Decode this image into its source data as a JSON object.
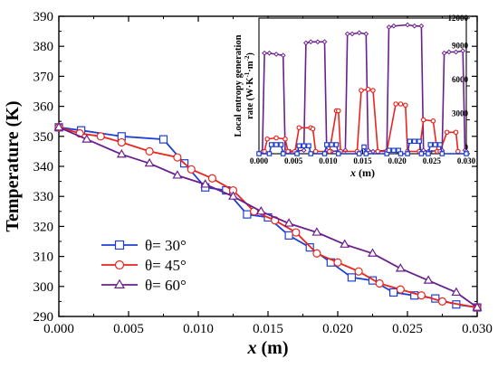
{
  "chart_data": [
    {
      "type": "line",
      "xlabel_var": "x",
      "xlabel_unit": " (m)",
      "ylabel": "Temperature (K)",
      "xlim": [
        0,
        0.03
      ],
      "ylim": [
        290,
        390
      ],
      "xticks": [
        "0.000",
        "0.005",
        "0.010",
        "0.015",
        "0.020",
        "0.025",
        "0.030"
      ],
      "yticks": [
        "290",
        "300",
        "310",
        "320",
        "330",
        "340",
        "350",
        "360",
        "370",
        "380",
        "390"
      ],
      "legend_position": "bottom-left",
      "grid": false,
      "series": [
        {
          "name": "θ= 30°",
          "color": "#1f3fd4",
          "marker": "square",
          "x": [
            0,
            0.0016,
            0.0045,
            0.0075,
            0.009,
            0.0105,
            0.012,
            0.0135,
            0.015,
            0.0165,
            0.018,
            0.0195,
            0.021,
            0.0225,
            0.024,
            0.0255,
            0.027,
            0.0285,
            0.03
          ],
          "y": [
            353,
            352,
            350,
            349,
            341,
            333,
            332,
            324,
            323,
            317,
            313,
            308,
            303,
            302,
            298,
            297,
            296,
            294,
            293
          ]
        },
        {
          "name": "θ= 45°",
          "color": "#e8251e",
          "marker": "circle",
          "x": [
            0,
            0.0015,
            0.003,
            0.0045,
            0.0065,
            0.0085,
            0.0095,
            0.011,
            0.0125,
            0.014,
            0.0155,
            0.017,
            0.0185,
            0.02,
            0.0215,
            0.023,
            0.0245,
            0.026,
            0.0275,
            0.03
          ],
          "y": [
            353,
            351,
            350,
            348,
            345,
            343,
            339,
            336,
            332,
            325,
            322,
            318,
            311,
            308,
            305,
            301,
            299,
            297,
            295,
            293
          ]
        },
        {
          "name": "θ= 60°",
          "color": "#6b1f8c",
          "marker": "triangle",
          "x": [
            0,
            0.002,
            0.0045,
            0.0065,
            0.0085,
            0.0105,
            0.0125,
            0.0145,
            0.0165,
            0.0185,
            0.0205,
            0.0225,
            0.0245,
            0.0265,
            0.0285,
            0.03
          ],
          "y": [
            353,
            349,
            344,
            341,
            337,
            334,
            330,
            325,
            321,
            318,
            314,
            311,
            306,
            302,
            298,
            293
          ]
        }
      ]
    },
    {
      "type": "line",
      "title_lines": [
        "Local entropy generation",
        "rate (W·K",
        "-1",
        "·m",
        "-2",
        ")"
      ],
      "xlabel_var": "x",
      "xlabel_unit": " (m)",
      "xlim": [
        0,
        0.03
      ],
      "ylim": [
        0,
        12000
      ],
      "xticks": [
        "0.000",
        "0.005",
        "0.010",
        "0.015",
        "0.020",
        "0.025",
        "0.030"
      ],
      "yticks": [
        "0",
        "3000",
        "6000",
        "9000",
        "12000"
      ],
      "series": [
        {
          "name": "θ= 60°",
          "color": "#6b1f8c",
          "marker": "diamond",
          "x": [
            0,
            0.0005,
            0.0008,
            0.0015,
            0.0025,
            0.0035,
            0.0038,
            0.0045,
            0.0065,
            0.0068,
            0.0075,
            0.0085,
            0.0095,
            0.0098,
            0.0105,
            0.0125,
            0.0128,
            0.0135,
            0.0145,
            0.0155,
            0.0158,
            0.0165,
            0.0185,
            0.0188,
            0.0195,
            0.0215,
            0.0225,
            0.0235,
            0.0238,
            0.0245,
            0.0265,
            0.0268,
            0.0275,
            0.0285,
            0.0295,
            0.0298,
            0.03
          ],
          "y": [
            0,
            200,
            8900,
            8900,
            8800,
            8700,
            200,
            200,
            300,
            9800,
            9900,
            9900,
            9900,
            300,
            200,
            300,
            10600,
            10600,
            10700,
            10600,
            300,
            200,
            300,
            11200,
            11300,
            11400,
            11300,
            11300,
            300,
            200,
            300,
            8900,
            9000,
            9000,
            9100,
            300,
            200
          ]
        },
        {
          "name": "θ= 45°",
          "color": "#e8251e",
          "marker": "circle",
          "x": [
            0.0008,
            0.0012,
            0.0025,
            0.0038,
            0.0042,
            0.0052,
            0.0058,
            0.0075,
            0.0078,
            0.0082,
            0.0102,
            0.0112,
            0.0115,
            0.0118,
            0.0142,
            0.0148,
            0.0158,
            0.0165,
            0.0172,
            0.0185,
            0.0198,
            0.0205,
            0.0212,
            0.0215,
            0.0232,
            0.0238,
            0.0252,
            0.0258,
            0.0262,
            0.0272,
            0.0285,
            0.0288
          ],
          "y": [
            200,
            1300,
            1400,
            1300,
            200,
            200,
            2300,
            2300,
            2200,
            200,
            200,
            3800,
            3800,
            200,
            200,
            5600,
            5700,
            5600,
            200,
            200,
            4400,
            4400,
            4300,
            200,
            200,
            3000,
            2900,
            200,
            200,
            1900,
            1900,
            200
          ]
        },
        {
          "name": "θ= 30°",
          "color": "#1f3fd4",
          "marker": "square",
          "x": [
            0,
            0.0015,
            0.0018,
            0.0025,
            0.0032,
            0.0035,
            0.0055,
            0.0058,
            0.0065,
            0.0072,
            0.0075,
            0.0095,
            0.0098,
            0.0105,
            0.0112,
            0.0115,
            0.0145,
            0.0152,
            0.0155,
            0.0185,
            0.0188,
            0.0195,
            0.0202,
            0.0205,
            0.0215,
            0.0218,
            0.0225,
            0.0232,
            0.0235,
            0.0245,
            0.0248,
            0.0255,
            0.0262,
            0.0265,
            0.03
          ],
          "y": [
            0,
            0,
            800,
            800,
            800,
            0,
            0,
            700,
            700,
            700,
            0,
            0,
            800,
            800,
            800,
            0,
            0,
            600,
            0,
            0,
            300,
            300,
            300,
            0,
            0,
            1100,
            1100,
            1100,
            0,
            0,
            800,
            800,
            800,
            0,
            0
          ]
        }
      ]
    }
  ]
}
